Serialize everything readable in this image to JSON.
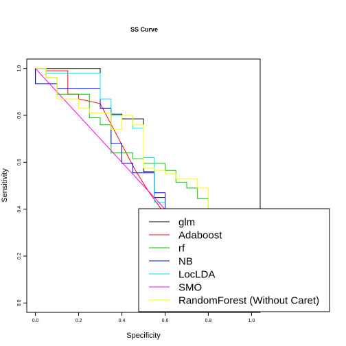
{
  "chart_data": {
    "type": "line",
    "title": "SS Curve",
    "xlabel": "Specificity",
    "ylabel": "Sensitivity",
    "xlim": [
      -0.04,
      1.04
    ],
    "ylim": [
      -0.04,
      1.04
    ],
    "xticks": [
      "0.0",
      "0.2",
      "0.4",
      "0.6",
      "0.8",
      "1.0"
    ],
    "yticks": [
      "0.0",
      "0.2",
      "0.4",
      "0.6",
      "0.8",
      "1.0"
    ],
    "xtick_values": [
      0,
      0.2,
      0.4,
      0.6,
      0.8,
      1.0
    ],
    "ytick_values": [
      0,
      0.2,
      0.4,
      0.6,
      0.8,
      1.0
    ],
    "grid": false,
    "legend_position": "bottom-right",
    "series": [
      {
        "name": "glm",
        "color": "#000000",
        "x": [
          0,
          0,
          0.3,
          0.3,
          0.35,
          0.35,
          0.4,
          0.4,
          0.5,
          0.5,
          0.55,
          0.55,
          0.6,
          0.6
        ],
        "y": [
          0.935,
          1.0,
          1.0,
          0.83,
          0.83,
          0.805,
          0.805,
          0.785,
          0.785,
          0.56,
          0.56,
          0.45,
          0.45,
          0.39
        ]
      },
      {
        "name": "Adaboost",
        "color": "#ff0000",
        "x": [
          0,
          0.05,
          0.05,
          0.15,
          0.15,
          0.2,
          0.2,
          0.3,
          0.38,
          0.46,
          0.52,
          0.59
        ],
        "y": [
          1.0,
          1.0,
          0.99,
          0.99,
          0.89,
          0.89,
          0.87,
          0.85,
          0.71,
          0.57,
          0.48,
          0.39
        ]
      },
      {
        "name": "rf",
        "color": "#00cc00",
        "x": [
          0.05,
          0.05,
          0.1,
          0.1,
          0.25,
          0.25,
          0.3,
          0.3,
          0.35,
          0.35,
          0.45,
          0.45,
          0.5,
          0.5,
          0.6,
          0.6,
          0.65,
          0.65,
          0.7,
          0.7,
          0.75,
          0.75,
          0.8,
          0.8
        ],
        "y": [
          1.0,
          0.96,
          0.96,
          0.89,
          0.89,
          0.79,
          0.79,
          0.76,
          0.76,
          0.64,
          0.64,
          0.615,
          0.615,
          0.595,
          0.595,
          0.565,
          0.565,
          0.515,
          0.515,
          0.49,
          0.49,
          0.445,
          0.445,
          0.39
        ]
      },
      {
        "name": "NB",
        "color": "#0000ff",
        "x": [
          0,
          0,
          0.1,
          0.1,
          0.3,
          0.3,
          0.35,
          0.35,
          0.4,
          0.4,
          0.45,
          0.45,
          0.55,
          0.55,
          0.6,
          0.6
        ],
        "y": [
          1.0,
          0.935,
          0.935,
          0.915,
          0.915,
          0.83,
          0.83,
          0.68,
          0.68,
          0.595,
          0.595,
          0.555,
          0.555,
          0.47,
          0.47,
          0.39
        ]
      },
      {
        "name": "LocLDA",
        "color": "#00e5ee",
        "x": [
          0,
          0.05,
          0.05,
          0.3,
          0.3,
          0.35,
          0.35,
          0.45,
          0.45,
          0.5,
          0.5,
          0.55,
          0.55,
          0.6
        ],
        "y": [
          1.0,
          1.0,
          0.98,
          0.98,
          0.87,
          0.87,
          0.8,
          0.8,
          0.745,
          0.745,
          0.62,
          0.62,
          0.43,
          0.43
        ]
      },
      {
        "name": "SMO",
        "color": "#ff00ff",
        "x": [
          0,
          0.61
        ],
        "y": [
          1.0,
          0.39
        ]
      },
      {
        "name": "RandomForest (Without Caret)",
        "color": "#ffff00",
        "x": [
          0,
          0.05,
          0.05,
          0.1,
          0.1,
          0.2,
          0.2,
          0.25,
          0.25,
          0.35,
          0.35,
          0.4,
          0.4,
          0.45,
          0.45,
          0.5,
          0.5,
          0.55,
          0.55,
          0.6,
          0.6,
          0.65,
          0.65,
          0.75,
          0.75,
          0.8,
          0.8
        ],
        "y": [
          1.0,
          1.0,
          0.96,
          0.96,
          0.87,
          0.87,
          0.83,
          0.83,
          0.81,
          0.81,
          0.74,
          0.74,
          0.8,
          0.8,
          0.76,
          0.76,
          0.575,
          0.575,
          0.565,
          0.565,
          0.55,
          0.55,
          0.53,
          0.53,
          0.49,
          0.49,
          0.39
        ]
      }
    ]
  }
}
